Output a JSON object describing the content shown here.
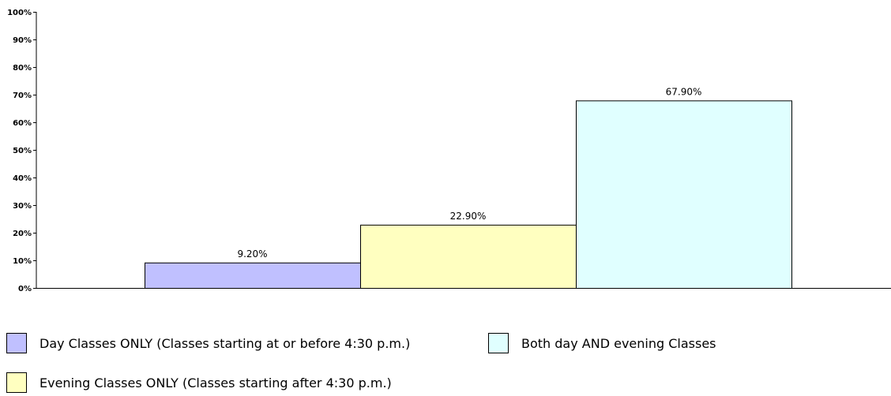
{
  "chart_data": {
    "type": "bar",
    "categories": [
      "Day Classes ONLY (Classes starting at or before 4:30 p.m.)",
      "Evening Classes ONLY (Classes starting after 4:30 p.m.)",
      "Both day AND evening Classes"
    ],
    "values": [
      9.2,
      22.9,
      67.9
    ],
    "data_labels": [
      "9.20%",
      "22.90%",
      "67.90%"
    ],
    "colors": [
      "#c0c0ff",
      "#ffffc0",
      "#e0ffff"
    ],
    "title": "",
    "xlabel": "",
    "ylabel": "",
    "ylim": [
      0,
      100
    ],
    "yticks": [
      0,
      10,
      20,
      30,
      40,
      50,
      60,
      70,
      80,
      90,
      100
    ],
    "ytick_labels": [
      "0%",
      "10%",
      "20%",
      "30%",
      "40%",
      "50%",
      "60%",
      "70%",
      "80%",
      "90%",
      "100%"
    ],
    "grid": false,
    "legend_position": "bottom"
  },
  "legend": {
    "items": [
      {
        "label": "Day Classes ONLY (Classes starting at or before 4:30 p.m.)",
        "color": "#c0c0ff"
      },
      {
        "label": "Both day AND evening Classes",
        "color": "#e0ffff"
      },
      {
        "label": "Evening Classes ONLY (Classes starting after 4:30 p.m.)",
        "color": "#ffffc0"
      }
    ]
  }
}
